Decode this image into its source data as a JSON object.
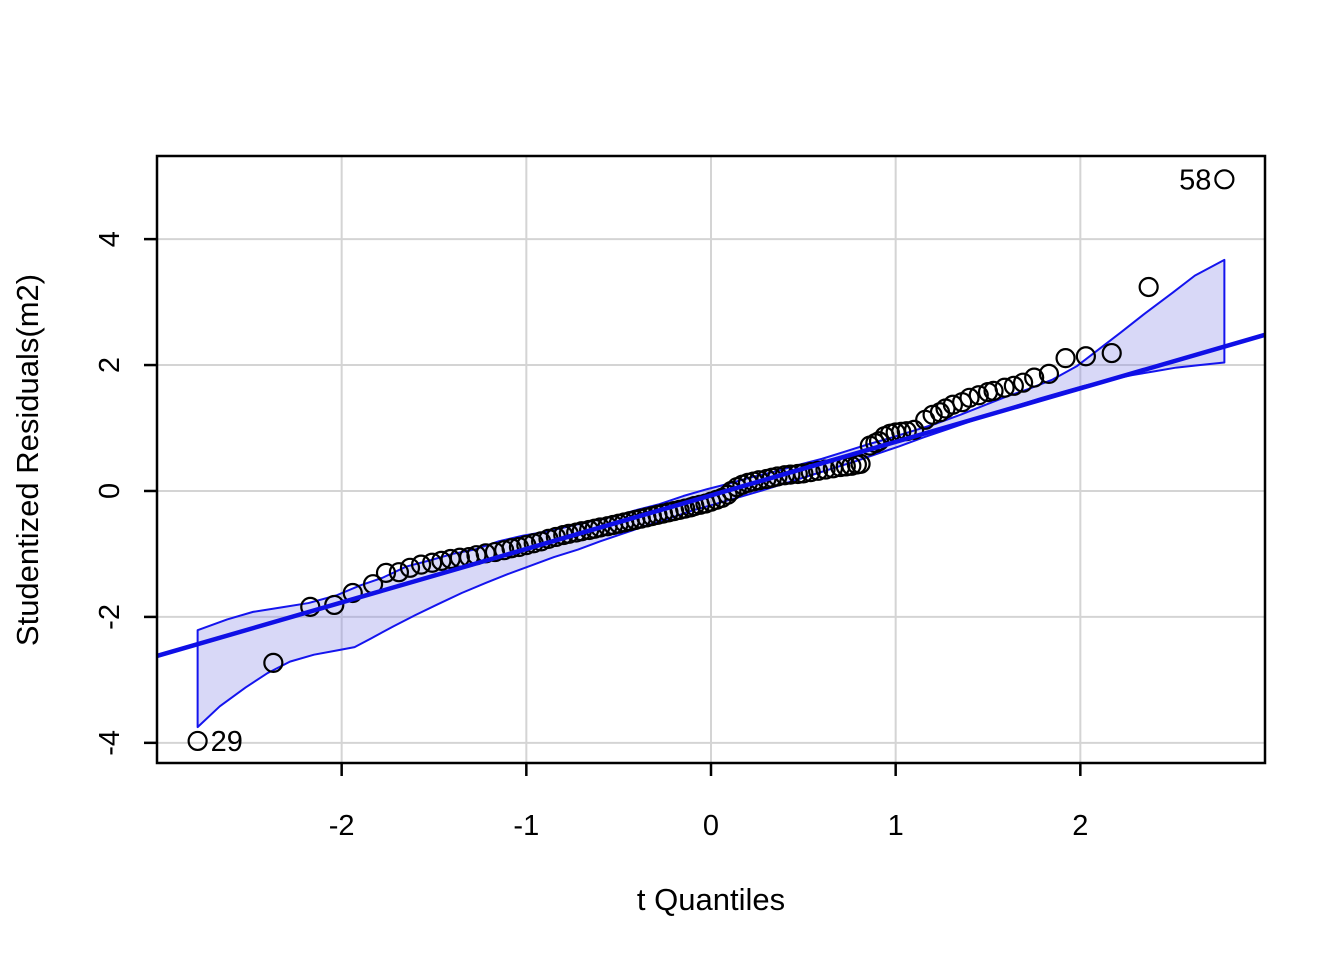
{
  "chart_data": {
    "type": "scatter",
    "subtype": "qq-plot-with-confidence-envelope",
    "title": "",
    "xlabel": "t Quantiles",
    "ylabel": "Studentized Residuals(m2)",
    "xlim": [
      -3,
      3
    ],
    "ylim": [
      -4.32,
      5.32
    ],
    "x_ticks": [
      "-2",
      "-1",
      "0",
      "1",
      "2"
    ],
    "x_tick_values": [
      -2,
      -1,
      0,
      1,
      2
    ],
    "y_ticks": [
      "-4",
      "-2",
      "0",
      "2",
      "4"
    ],
    "y_tick_values": [
      -4,
      -2,
      0,
      2,
      4
    ],
    "grid": true,
    "legend": null,
    "points": [
      [
        -2.78,
        -3.97
      ],
      [
        -2.37,
        -2.73
      ],
      [
        -2.17,
        -1.84
      ],
      [
        -2.04,
        -1.81
      ],
      [
        -1.94,
        -1.62
      ],
      [
        -1.83,
        -1.48
      ],
      [
        -1.76,
        -1.3
      ],
      [
        -1.69,
        -1.29
      ],
      [
        -1.63,
        -1.22
      ],
      [
        -1.57,
        -1.17
      ],
      [
        -1.51,
        -1.14
      ],
      [
        -1.46,
        -1.11
      ],
      [
        -1.41,
        -1.08
      ],
      [
        -1.36,
        -1.06
      ],
      [
        -1.31,
        -1.05
      ],
      [
        -1.27,
        -1.02
      ],
      [
        -1.22,
        -0.99
      ],
      [
        -1.17,
        -0.97
      ],
      [
        -1.12,
        -0.94
      ],
      [
        -1.08,
        -0.91
      ],
      [
        -1.04,
        -0.89
      ],
      [
        -1.0,
        -0.86
      ],
      [
        -0.96,
        -0.83
      ],
      [
        -0.92,
        -0.8
      ],
      [
        -0.88,
        -0.76
      ],
      [
        -0.84,
        -0.73
      ],
      [
        -0.8,
        -0.7
      ],
      [
        -0.77,
        -0.68
      ],
      [
        -0.73,
        -0.66
      ],
      [
        -0.7,
        -0.64
      ],
      [
        -0.66,
        -0.62
      ],
      [
        -0.63,
        -0.6
      ],
      [
        -0.6,
        -0.58
      ],
      [
        -0.56,
        -0.56
      ],
      [
        -0.53,
        -0.54
      ],
      [
        -0.5,
        -0.52
      ],
      [
        -0.47,
        -0.5
      ],
      [
        -0.44,
        -0.48
      ],
      [
        -0.41,
        -0.46
      ],
      [
        -0.38,
        -0.44
      ],
      [
        -0.35,
        -0.42
      ],
      [
        -0.32,
        -0.4
      ],
      [
        -0.29,
        -0.38
      ],
      [
        -0.26,
        -0.36
      ],
      [
        -0.23,
        -0.34
      ],
      [
        -0.2,
        -0.32
      ],
      [
        -0.17,
        -0.3
      ],
      [
        -0.14,
        -0.28
      ],
      [
        -0.11,
        -0.26
      ],
      [
        -0.09,
        -0.24
      ],
      [
        -0.06,
        -0.22
      ],
      [
        -0.03,
        -0.2
      ],
      [
        0.0,
        -0.17
      ],
      [
        0.03,
        -0.14
      ],
      [
        0.06,
        -0.11
      ],
      [
        0.09,
        -0.06
      ],
      [
        0.11,
        0.0
      ],
      [
        0.14,
        0.06
      ],
      [
        0.17,
        0.1
      ],
      [
        0.2,
        0.13
      ],
      [
        0.23,
        0.15
      ],
      [
        0.26,
        0.17
      ],
      [
        0.3,
        0.19
      ],
      [
        0.33,
        0.21
      ],
      [
        0.36,
        0.23
      ],
      [
        0.4,
        0.25
      ],
      [
        0.43,
        0.26
      ],
      [
        0.47,
        0.27
      ],
      [
        0.5,
        0.28
      ],
      [
        0.54,
        0.3
      ],
      [
        0.58,
        0.32
      ],
      [
        0.62,
        0.34
      ],
      [
        0.66,
        0.36
      ],
      [
        0.7,
        0.38
      ],
      [
        0.73,
        0.39
      ],
      [
        0.76,
        0.4
      ],
      [
        0.79,
        0.42
      ],
      [
        0.81,
        0.43
      ],
      [
        0.86,
        0.72
      ],
      [
        0.89,
        0.76
      ],
      [
        0.91,
        0.79
      ],
      [
        0.94,
        0.87
      ],
      [
        0.97,
        0.91
      ],
      [
        1.0,
        0.93
      ],
      [
        1.03,
        0.94
      ],
      [
        1.06,
        0.95
      ],
      [
        1.1,
        0.97
      ],
      [
        1.16,
        1.13
      ],
      [
        1.2,
        1.21
      ],
      [
        1.24,
        1.25
      ],
      [
        1.27,
        1.31
      ],
      [
        1.31,
        1.37
      ],
      [
        1.36,
        1.41
      ],
      [
        1.4,
        1.48
      ],
      [
        1.45,
        1.52
      ],
      [
        1.5,
        1.57
      ],
      [
        1.53,
        1.59
      ],
      [
        1.59,
        1.64
      ],
      [
        1.64,
        1.67
      ],
      [
        1.69,
        1.72
      ],
      [
        1.75,
        1.8
      ],
      [
        1.83,
        1.86
      ],
      [
        1.92,
        2.11
      ],
      [
        2.03,
        2.14
      ],
      [
        2.17,
        2.19
      ],
      [
        2.37,
        3.24
      ],
      [
        2.78,
        4.95
      ]
    ],
    "reference_line": {
      "x": [
        -3,
        3
      ],
      "y": [
        -2.62,
        2.48
      ]
    },
    "envelope": {
      "upper": [
        [
          -2.78,
          -2.21
        ],
        [
          -2.62,
          -2.04
        ],
        [
          -2.48,
          -1.92
        ],
        [
          -2.33,
          -1.85
        ],
        [
          -2.18,
          -1.78
        ],
        [
          -2.03,
          -1.66
        ],
        [
          -1.9,
          -1.5
        ],
        [
          -1.78,
          -1.38
        ],
        [
          -1.65,
          -1.2
        ],
        [
          -1.52,
          -1.1
        ],
        [
          -1.4,
          -1.0
        ],
        [
          -1.28,
          -0.93
        ],
        [
          -1.15,
          -0.8
        ],
        [
          -1.02,
          -0.71
        ],
        [
          -0.9,
          -0.65
        ],
        [
          -0.78,
          -0.57
        ],
        [
          -0.65,
          -0.48
        ],
        [
          -0.52,
          -0.4
        ],
        [
          -0.4,
          -0.3
        ],
        [
          -0.28,
          -0.21
        ],
        [
          -0.15,
          -0.08
        ],
        [
          -0.02,
          0.03
        ],
        [
          0.1,
          0.12
        ],
        [
          0.22,
          0.22
        ],
        [
          0.35,
          0.31
        ],
        [
          0.48,
          0.42
        ],
        [
          0.6,
          0.51
        ],
        [
          0.72,
          0.62
        ],
        [
          0.85,
          0.74
        ],
        [
          0.98,
          0.85
        ],
        [
          1.1,
          0.96
        ],
        [
          1.22,
          1.07
        ],
        [
          1.35,
          1.21
        ],
        [
          1.48,
          1.36
        ],
        [
          1.6,
          1.5
        ],
        [
          1.72,
          1.62
        ],
        [
          1.85,
          1.77
        ],
        [
          1.98,
          1.98
        ],
        [
          2.1,
          2.25
        ],
        [
          2.22,
          2.52
        ],
        [
          2.35,
          2.82
        ],
        [
          2.5,
          3.15
        ],
        [
          2.62,
          3.42
        ],
        [
          2.78,
          3.67
        ]
      ],
      "lower": [
        [
          -2.78,
          -3.75
        ],
        [
          -2.66,
          -3.42
        ],
        [
          -2.52,
          -3.12
        ],
        [
          -2.4,
          -2.89
        ],
        [
          -2.28,
          -2.71
        ],
        [
          -2.15,
          -2.6
        ],
        [
          -2.02,
          -2.53
        ],
        [
          -1.93,
          -2.48
        ],
        [
          -1.84,
          -2.34
        ],
        [
          -1.72,
          -2.15
        ],
        [
          -1.6,
          -1.97
        ],
        [
          -1.48,
          -1.8
        ],
        [
          -1.35,
          -1.62
        ],
        [
          -1.22,
          -1.46
        ],
        [
          -1.1,
          -1.32
        ],
        [
          -0.98,
          -1.19
        ],
        [
          -0.85,
          -1.05
        ],
        [
          -0.72,
          -0.93
        ],
        [
          -0.6,
          -0.8
        ],
        [
          -0.48,
          -0.68
        ],
        [
          -0.35,
          -0.55
        ],
        [
          -0.22,
          -0.43
        ],
        [
          -0.1,
          -0.31
        ],
        [
          0.02,
          -0.21
        ],
        [
          0.15,
          -0.1
        ],
        [
          0.28,
          0.01
        ],
        [
          0.4,
          0.12
        ],
        [
          0.52,
          0.23
        ],
        [
          0.65,
          0.35
        ],
        [
          0.78,
          0.47
        ],
        [
          0.9,
          0.59
        ],
        [
          1.02,
          0.71
        ],
        [
          1.15,
          0.85
        ],
        [
          1.28,
          0.98
        ],
        [
          1.4,
          1.1
        ],
        [
          1.52,
          1.22
        ],
        [
          1.65,
          1.35
        ],
        [
          1.78,
          1.47
        ],
        [
          1.9,
          1.57
        ],
        [
          2.02,
          1.67
        ],
        [
          2.15,
          1.76
        ],
        [
          2.28,
          1.84
        ],
        [
          2.4,
          1.9
        ],
        [
          2.52,
          1.96
        ],
        [
          2.65,
          2.0
        ],
        [
          2.78,
          2.04
        ]
      ]
    },
    "outliers": [
      {
        "id": "58",
        "x": 2.78,
        "y": 4.95,
        "label_side": "left"
      },
      {
        "id": "29",
        "x": -2.78,
        "y": -3.97,
        "label_side": "right"
      }
    ],
    "colors": {
      "point_stroke": "#000000",
      "reference_line": "#0f0fe6",
      "envelope_stroke": "#1414ee",
      "envelope_fill": "#8888e8",
      "envelope_fill_opacity": 0.33,
      "grid": "#d4d4d4",
      "axis": "#000000",
      "background": "#ffffff"
    }
  }
}
